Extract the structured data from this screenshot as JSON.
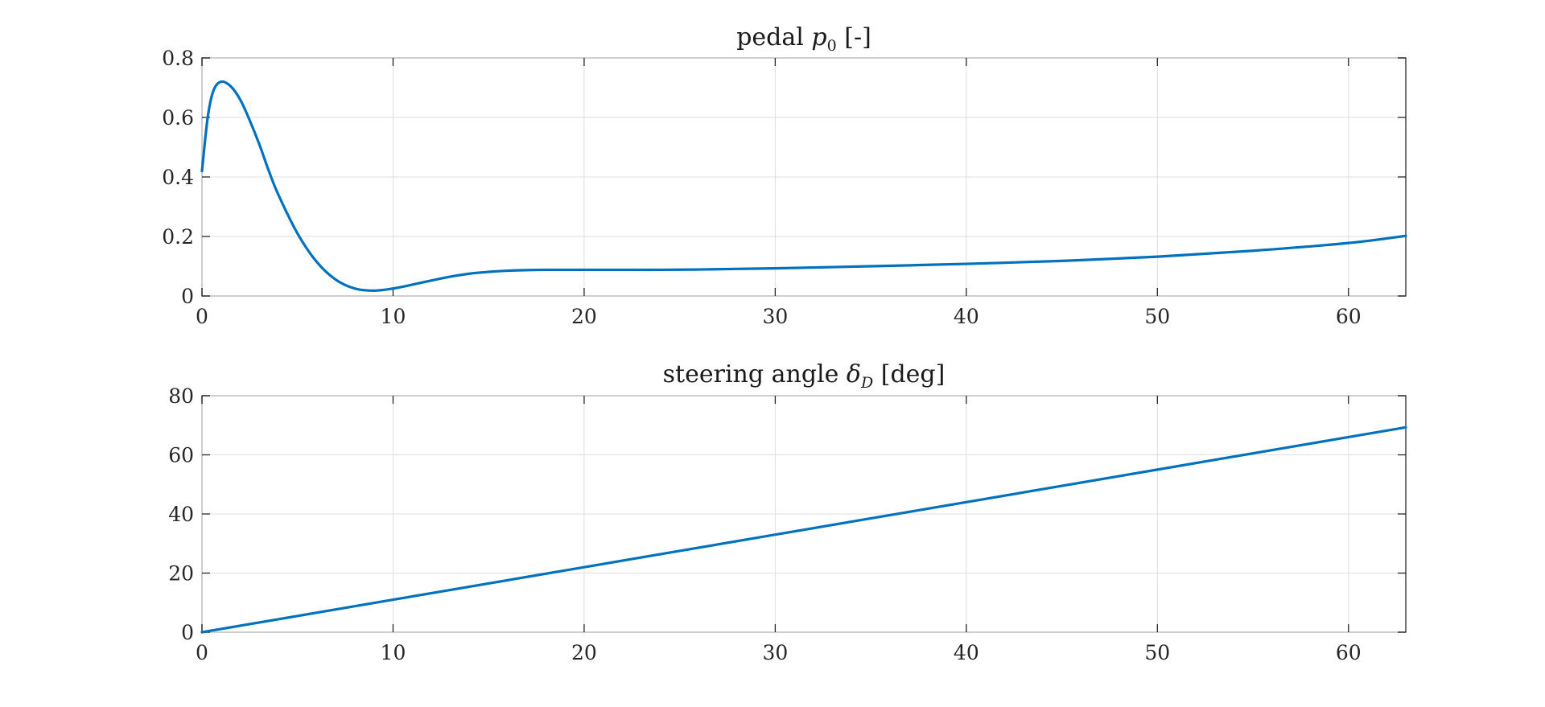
{
  "chart_data": [
    {
      "type": "line",
      "title_main": "pedal ",
      "title_symbol": "p",
      "title_sub": "0",
      "title_unit": " [-]",
      "xlim": [
        0,
        63
      ],
      "ylim": [
        0,
        0.8
      ],
      "x_ticks": [
        0,
        10,
        20,
        30,
        40,
        50,
        60
      ],
      "x_tick_labels": [
        "0",
        "10",
        "20",
        "30",
        "40",
        "50",
        "60"
      ],
      "y_ticks": [
        0,
        0.2,
        0.4,
        0.6,
        0.8
      ],
      "y_tick_labels": [
        "0",
        "0.2",
        "0.4",
        "0.6",
        "0.8"
      ],
      "grid": true,
      "color": "#0072BD",
      "series": [
        {
          "x": [
            0,
            0.3,
            0.6,
            1,
            1.5,
            2,
            2.5,
            3,
            3.5,
            4,
            5,
            6,
            7,
            8,
            9,
            10,
            11,
            12,
            13,
            14,
            15,
            16,
            17,
            18,
            20,
            22,
            24,
            26,
            28,
            30,
            35,
            40,
            45,
            50,
            55,
            60,
            63
          ],
          "y": [
            0.42,
            0.6,
            0.69,
            0.72,
            0.705,
            0.66,
            0.59,
            0.51,
            0.42,
            0.34,
            0.21,
            0.115,
            0.055,
            0.025,
            0.018,
            0.025,
            0.038,
            0.052,
            0.065,
            0.075,
            0.081,
            0.085,
            0.087,
            0.088,
            0.088,
            0.088,
            0.088,
            0.089,
            0.091,
            0.093,
            0.1,
            0.108,
            0.118,
            0.132,
            0.152,
            0.178,
            0.202
          ]
        }
      ]
    },
    {
      "type": "line",
      "title_main": "steering angle ",
      "title_symbol": "δ",
      "title_sub": "D",
      "title_unit": " [deg]",
      "xlim": [
        0,
        63
      ],
      "ylim": [
        0,
        80
      ],
      "x_ticks": [
        0,
        10,
        20,
        30,
        40,
        50,
        60
      ],
      "x_tick_labels": [
        "0",
        "10",
        "20",
        "30",
        "40",
        "50",
        "60"
      ],
      "y_ticks": [
        0,
        20,
        40,
        60,
        80
      ],
      "y_tick_labels": [
        "0",
        "20",
        "40",
        "60",
        "80"
      ],
      "grid": true,
      "color": "#0072BD",
      "series": [
        {
          "x": [
            0,
            10,
            20,
            30,
            40,
            50,
            60,
            63
          ],
          "y": [
            0,
            11,
            22,
            33,
            44,
            55,
            66,
            69.3
          ]
        }
      ]
    }
  ]
}
